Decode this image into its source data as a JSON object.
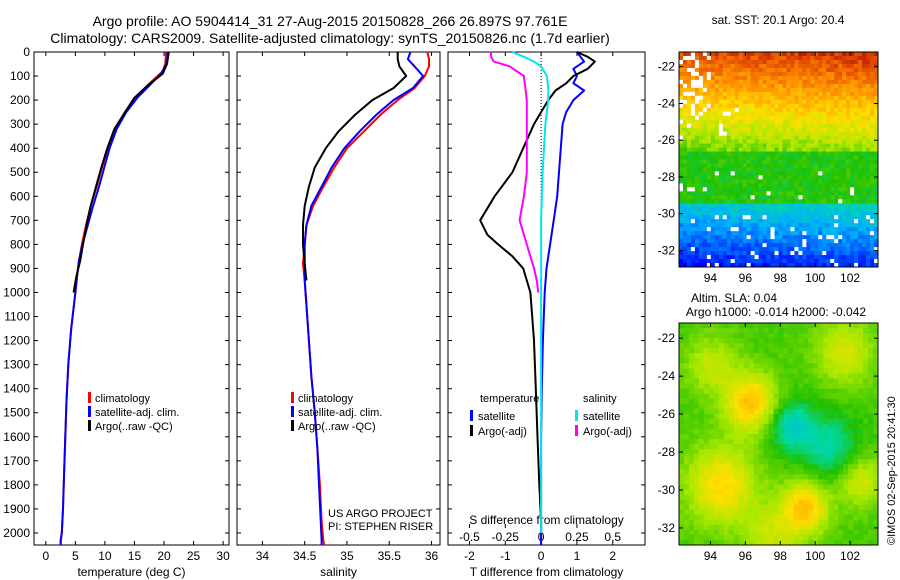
{
  "header": {
    "line1": "Argo profile: AO 5904414_31 27-Aug-2015 20150828_266 26.897S 97.761E",
    "line2": "Climatology: CARS2009. Satellite-adjusted climatology: synTS_20150826.nc (1.7d earlier)"
  },
  "colors": {
    "climatology": "#ff0000",
    "satellite": "#0000ff",
    "argo": "#000000",
    "sat_salinity": "#00e5ee",
    "argo_salinity": "#ff00ff"
  },
  "depth_axis": {
    "range": [
      0,
      2050
    ],
    "ticks": [
      0,
      100,
      200,
      300,
      400,
      500,
      600,
      700,
      800,
      900,
      1000,
      1100,
      1200,
      1300,
      1400,
      1500,
      1600,
      1700,
      1800,
      1900,
      2000
    ]
  },
  "chart_data": [
    {
      "type": "line",
      "xlabel": "temperature (deg C)",
      "xlim": [
        -2,
        31
      ],
      "xticks": [
        0,
        5,
        10,
        15,
        20,
        25,
        30
      ],
      "ylim": [
        2050,
        0
      ],
      "legend": {
        "placement": "lower-center",
        "entries": [
          "climatology",
          "satellite-adj. clim.",
          "Argo(..raw -QC)"
        ]
      },
      "series": [
        {
          "name": "climatology",
          "color": "#ff0000",
          "x": [
            20.3,
            20.3,
            20.2,
            19.8,
            18.0,
            15.5,
            13.5,
            11.8,
            10.5,
            9.5,
            8.6,
            7.6,
            6.8,
            6.1,
            5.6,
            5.3,
            5.0,
            4.3,
            3.8,
            3.5,
            3.3,
            3.1,
            2.9,
            2.7,
            2.55,
            2.5
          ],
          "depth": [
            0,
            20,
            50,
            80,
            120,
            180,
            250,
            320,
            400,
            480,
            560,
            640,
            720,
            800,
            870,
            930,
            1000,
            1150,
            1300,
            1450,
            1600,
            1750,
            1900,
            2000,
            2030,
            2050
          ]
        },
        {
          "name": "satellite-adj. clim.",
          "color": "#0000ff",
          "x": [
            20.6,
            20.6,
            20.4,
            19.5,
            17.5,
            15.5,
            13.6,
            12.0,
            10.8,
            9.9,
            9.0,
            8.0,
            7.1,
            6.2,
            5.6,
            5.3,
            5.0,
            4.3,
            3.8,
            3.5,
            3.3,
            3.1,
            2.9,
            2.7,
            2.5,
            2.5
          ],
          "depth": [
            0,
            20,
            50,
            90,
            140,
            190,
            250,
            320,
            400,
            480,
            560,
            640,
            720,
            800,
            870,
            930,
            1000,
            1150,
            1300,
            1450,
            1600,
            1750,
            1900,
            2000,
            2030,
            2050
          ]
        },
        {
          "name": "Argo(..raw -QC)",
          "color": "#000000",
          "x": [
            20.8,
            20.7,
            20.5,
            19.8,
            17.2,
            15.0,
            13.4,
            11.6,
            10.4,
            9.4,
            8.5,
            7.6,
            6.9,
            6.3,
            5.8,
            5.2,
            4.7
          ],
          "depth": [
            0,
            20,
            50,
            90,
            140,
            190,
            250,
            320,
            400,
            480,
            560,
            640,
            720,
            800,
            870,
            930,
            1000
          ]
        }
      ]
    },
    {
      "type": "line",
      "xlabel": "salinity",
      "xlim": [
        33.7,
        36.1
      ],
      "xticks": [
        34,
        34.5,
        35,
        35.5,
        36
      ],
      "xticklabels": [
        "34",
        "34.5",
        "35",
        "35.5",
        "36"
      ],
      "ylim": [
        2050,
        0
      ],
      "legend": {
        "placement": "lower-center",
        "entries": [
          "climatology",
          "satellite-adj. clim.",
          "Argo(..raw -QC)"
        ]
      },
      "annotation": [
        "US ARGO PROJECT",
        "PI: STEPHEN RISER"
      ],
      "series": [
        {
          "name": "climatology",
          "color": "#ff0000",
          "x": [
            35.95,
            35.97,
            35.97,
            35.92,
            35.8,
            35.6,
            35.4,
            35.2,
            35.0,
            34.85,
            34.72,
            34.6,
            34.52,
            34.5,
            34.48,
            34.5,
            34.52,
            34.55,
            34.58,
            34.62,
            34.65,
            34.68,
            34.7,
            34.72,
            34.73
          ],
          "depth": [
            0,
            30,
            60,
            100,
            150,
            200,
            260,
            330,
            400,
            480,
            560,
            640,
            720,
            800,
            880,
            950,
            1050,
            1200,
            1350,
            1500,
            1650,
            1800,
            1950,
            2030,
            2050
          ]
        },
        {
          "name": "satellite-adj. clim.",
          "color": "#0000ff",
          "x": [
            35.75,
            35.72,
            35.8,
            35.9,
            35.78,
            35.55,
            35.35,
            35.15,
            34.97,
            34.82,
            34.7,
            34.58,
            34.52,
            34.5,
            34.5,
            34.5,
            34.52,
            34.55,
            34.58,
            34.62,
            34.65,
            34.67,
            34.69,
            34.7,
            34.7
          ],
          "depth": [
            0,
            30,
            60,
            100,
            150,
            200,
            260,
            330,
            400,
            480,
            560,
            640,
            720,
            800,
            880,
            950,
            1050,
            1200,
            1350,
            1500,
            1650,
            1800,
            1950,
            2030,
            2050
          ]
        },
        {
          "name": "Argo(..raw -QC)",
          "color": "#000000",
          "x": [
            35.6,
            35.6,
            35.62,
            35.7,
            35.55,
            35.3,
            35.1,
            34.9,
            34.75,
            34.62,
            34.55,
            34.5,
            34.48,
            34.48,
            34.5,
            34.52
          ],
          "depth": [
            0,
            30,
            60,
            100,
            150,
            200,
            260,
            330,
            400,
            480,
            560,
            640,
            720,
            800,
            880,
            950
          ]
        }
      ]
    },
    {
      "type": "line",
      "xlabel": "T difference from climatology",
      "xlim": [
        -2.6,
        2.9
      ],
      "xticks": [
        -2,
        -1,
        0,
        1,
        2
      ],
      "secondary_xlabel": "S difference from climatology",
      "secondary_xlim": [
        -0.65,
        0.725
      ],
      "secondary_xticks": [
        -0.5,
        -0.25,
        0,
        0.25,
        0.5
      ],
      "secondary_xticklabels": [
        "-0.5",
        "-0.25",
        "0",
        "0.25",
        "0.5"
      ],
      "ylim": [
        2050,
        0
      ],
      "zero_line": "dotted",
      "legend": {
        "placement": "lower-center",
        "groups": [
          "temperature",
          "salinity"
        ],
        "entries": [
          "satellite",
          "Argo(-adj)",
          "satellite",
          "Argo(-adj)"
        ]
      },
      "series": [
        {
          "name": "satellite",
          "group": "temperature",
          "color": "#0000ff",
          "axis": "T",
          "x": [
            1.0,
            1.1,
            1.2,
            0.9,
            1.0,
            0.9,
            1.2,
            0.9,
            0.7,
            0.6,
            0.55,
            0.5,
            0.45,
            0.35,
            0.25,
            0.15,
            0.1,
            0.05,
            0.02,
            0,
            0,
            0,
            0,
            0,
            0
          ],
          "depth": [
            0,
            20,
            40,
            70,
            100,
            130,
            160,
            200,
            250,
            300,
            400,
            500,
            600,
            700,
            800,
            900,
            1000,
            1200,
            1400,
            1600,
            1800,
            1900,
            2000,
            2030,
            2050
          ]
        },
        {
          "name": "Argo(-adj)",
          "group": "temperature",
          "color": "#000000",
          "axis": "T",
          "x": [
            1.0,
            1.3,
            1.5,
            1.3,
            0.9,
            0.7,
            0.4,
            0.2,
            0.0,
            -0.2,
            -0.5,
            -0.8,
            -1.3,
            -1.7,
            -1.5,
            -1.2,
            -0.8,
            -0.5,
            -0.3,
            -0.2,
            -0.15,
            -0.1,
            -0.05,
            0,
            0
          ],
          "depth": [
            0,
            20,
            40,
            70,
            100,
            130,
            160,
            200,
            250,
            300,
            400,
            500,
            600,
            700,
            760,
            800,
            850,
            900,
            1000,
            1200,
            1400,
            1600,
            1800,
            1950,
            2000
          ]
        },
        {
          "name": "satellite",
          "group": "salinity",
          "color": "#00e5ee",
          "axis": "S",
          "x": [
            -0.2,
            -0.12,
            -0.05,
            0.0,
            0.04,
            0.05,
            0.05,
            0.03,
            0.02,
            0.01,
            0.0,
            0.0,
            0.0,
            0.0,
            0.0,
            0.0
          ],
          "depth": [
            0,
            20,
            40,
            60,
            100,
            150,
            200,
            300,
            400,
            500,
            700,
            900,
            1100,
            1400,
            1700,
            2000
          ]
        },
        {
          "name": "Argo(-adj)",
          "group": "salinity",
          "color": "#ff00ff",
          "axis": "S",
          "x": [
            -0.35,
            -0.35,
            -0.33,
            -0.22,
            -0.12,
            -0.1,
            -0.1,
            -0.1,
            -0.1,
            -0.12,
            -0.15,
            -0.1,
            -0.05,
            -0.03,
            -0.02
          ],
          "depth": [
            0,
            20,
            40,
            60,
            100,
            200,
            300,
            400,
            500,
            600,
            700,
            800,
            900,
            950,
            1000
          ]
        }
      ]
    },
    {
      "type": "heatmap",
      "title": "sat. SST: 20.1  Argo: 20.4",
      "xlim": [
        92.2,
        103.6
      ],
      "ylim": [
        -32.9,
        -21.2
      ],
      "xticks": [
        94,
        96,
        98,
        100,
        102
      ],
      "yticks": [
        -22,
        -24,
        -26,
        -28,
        -30,
        -32
      ],
      "description_colors": [
        "#b33000",
        "#ff8c00",
        "#ffd000",
        "#c8f000",
        "#22c000",
        "#16a800",
        "#00b0f0",
        "#0060c8"
      ]
    },
    {
      "type": "heatmap",
      "title": "Altim. SLA: 0.04",
      "subtitle": "Argo h1000: -0.014 h2000: -0.042",
      "xlim": [
        92.2,
        103.6
      ],
      "ylim": [
        -32.9,
        -21.2
      ],
      "xticks": [
        94,
        96,
        98,
        100,
        102
      ],
      "yticks": [
        -22,
        -24,
        -26,
        -28,
        -30,
        -32
      ]
    }
  ],
  "credit": "©IMOS 02-Sep-2015 20:41:30"
}
